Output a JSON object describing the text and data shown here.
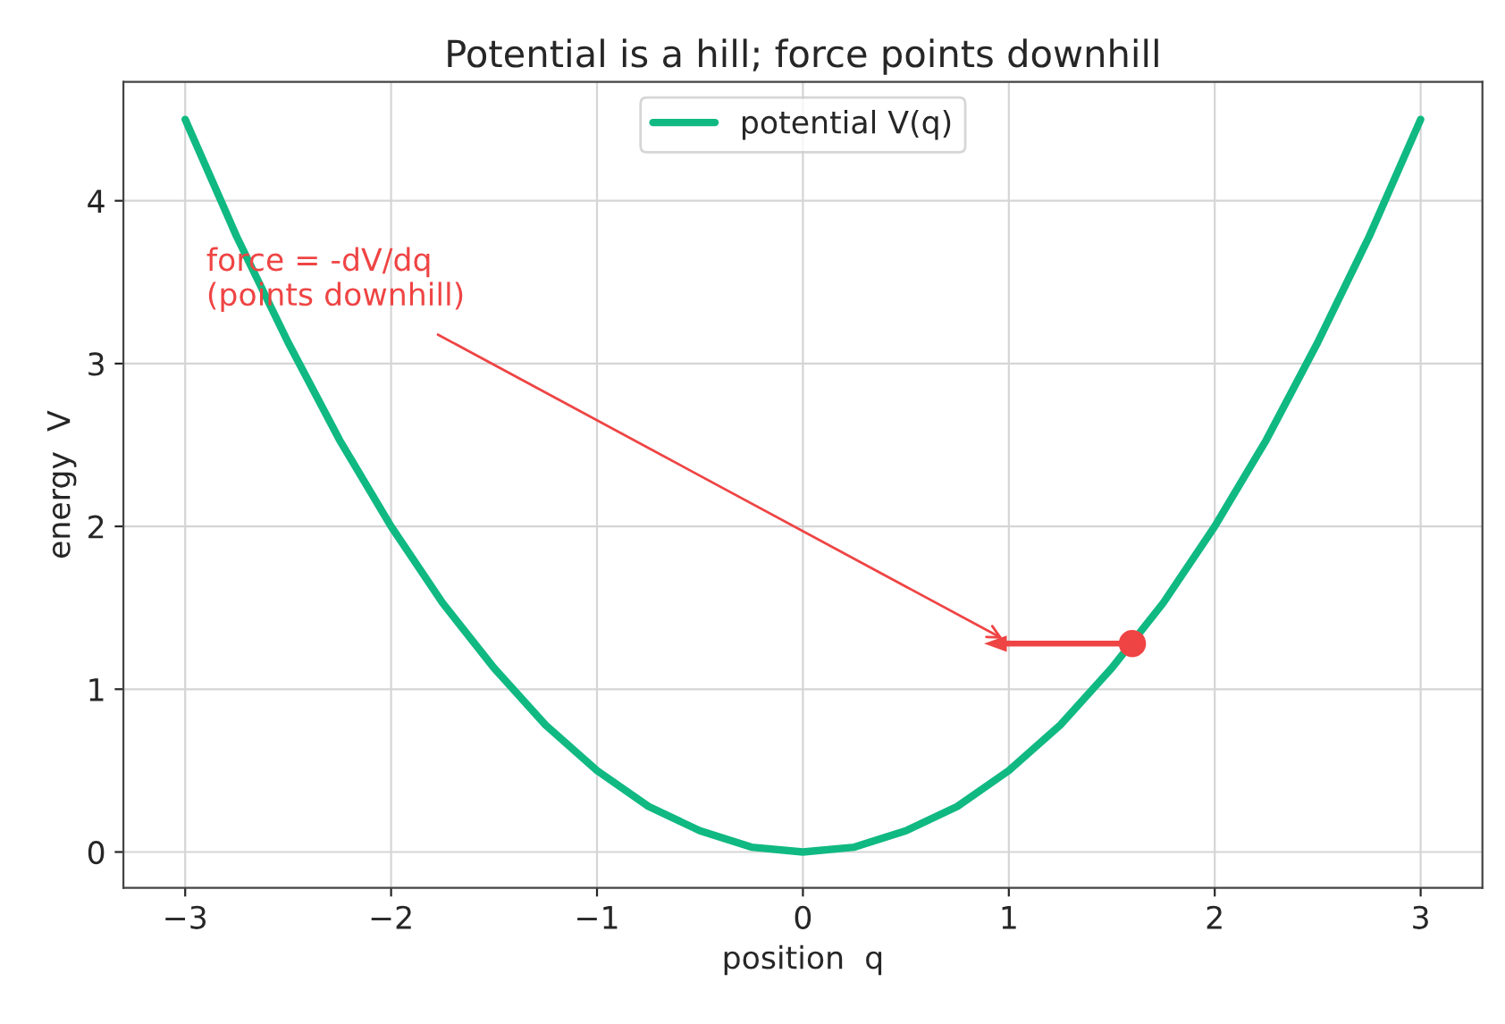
{
  "chart_data": {
    "type": "line",
    "title": "Potential is a hill; force points downhill",
    "xlabel": "position  q",
    "ylabel": "energy  V",
    "x": [
      -3,
      -2.75,
      -2.5,
      -2.25,
      -2,
      -1.75,
      -1.5,
      -1.25,
      -1,
      -0.75,
      -0.5,
      -0.25,
      0,
      0.25,
      0.5,
      0.75,
      1,
      1.25,
      1.5,
      1.75,
      2,
      2.25,
      2.5,
      2.75,
      3
    ],
    "series": [
      {
        "name": "potential V(q)",
        "color": "#10b981",
        "values": [
          4.5,
          3.78,
          3.13,
          2.53,
          2,
          1.53,
          1.13,
          0.78,
          0.5,
          0.28,
          0.13,
          0.03,
          0,
          0.03,
          0.13,
          0.28,
          0.5,
          0.78,
          1.13,
          1.53,
          2,
          2.53,
          3.13,
          3.78,
          4.5
        ]
      },
      {
        "type": "scatter",
        "color": "#ef4444",
        "x": [
          1.6
        ],
        "values": [
          1.28
        ],
        "marker": "circle"
      }
    ],
    "annotations": [
      "force = -dV/dq\n(points downhill)"
    ],
    "xlim": [
      -3.3,
      3.3
    ],
    "ylim": [
      -0.22,
      4.73
    ],
    "xticks": [
      -3,
      -2,
      -1,
      0,
      1,
      2,
      3
    ],
    "yticks": [
      0,
      1,
      2,
      3,
      4
    ],
    "grid": true,
    "legend": "upper center"
  }
}
